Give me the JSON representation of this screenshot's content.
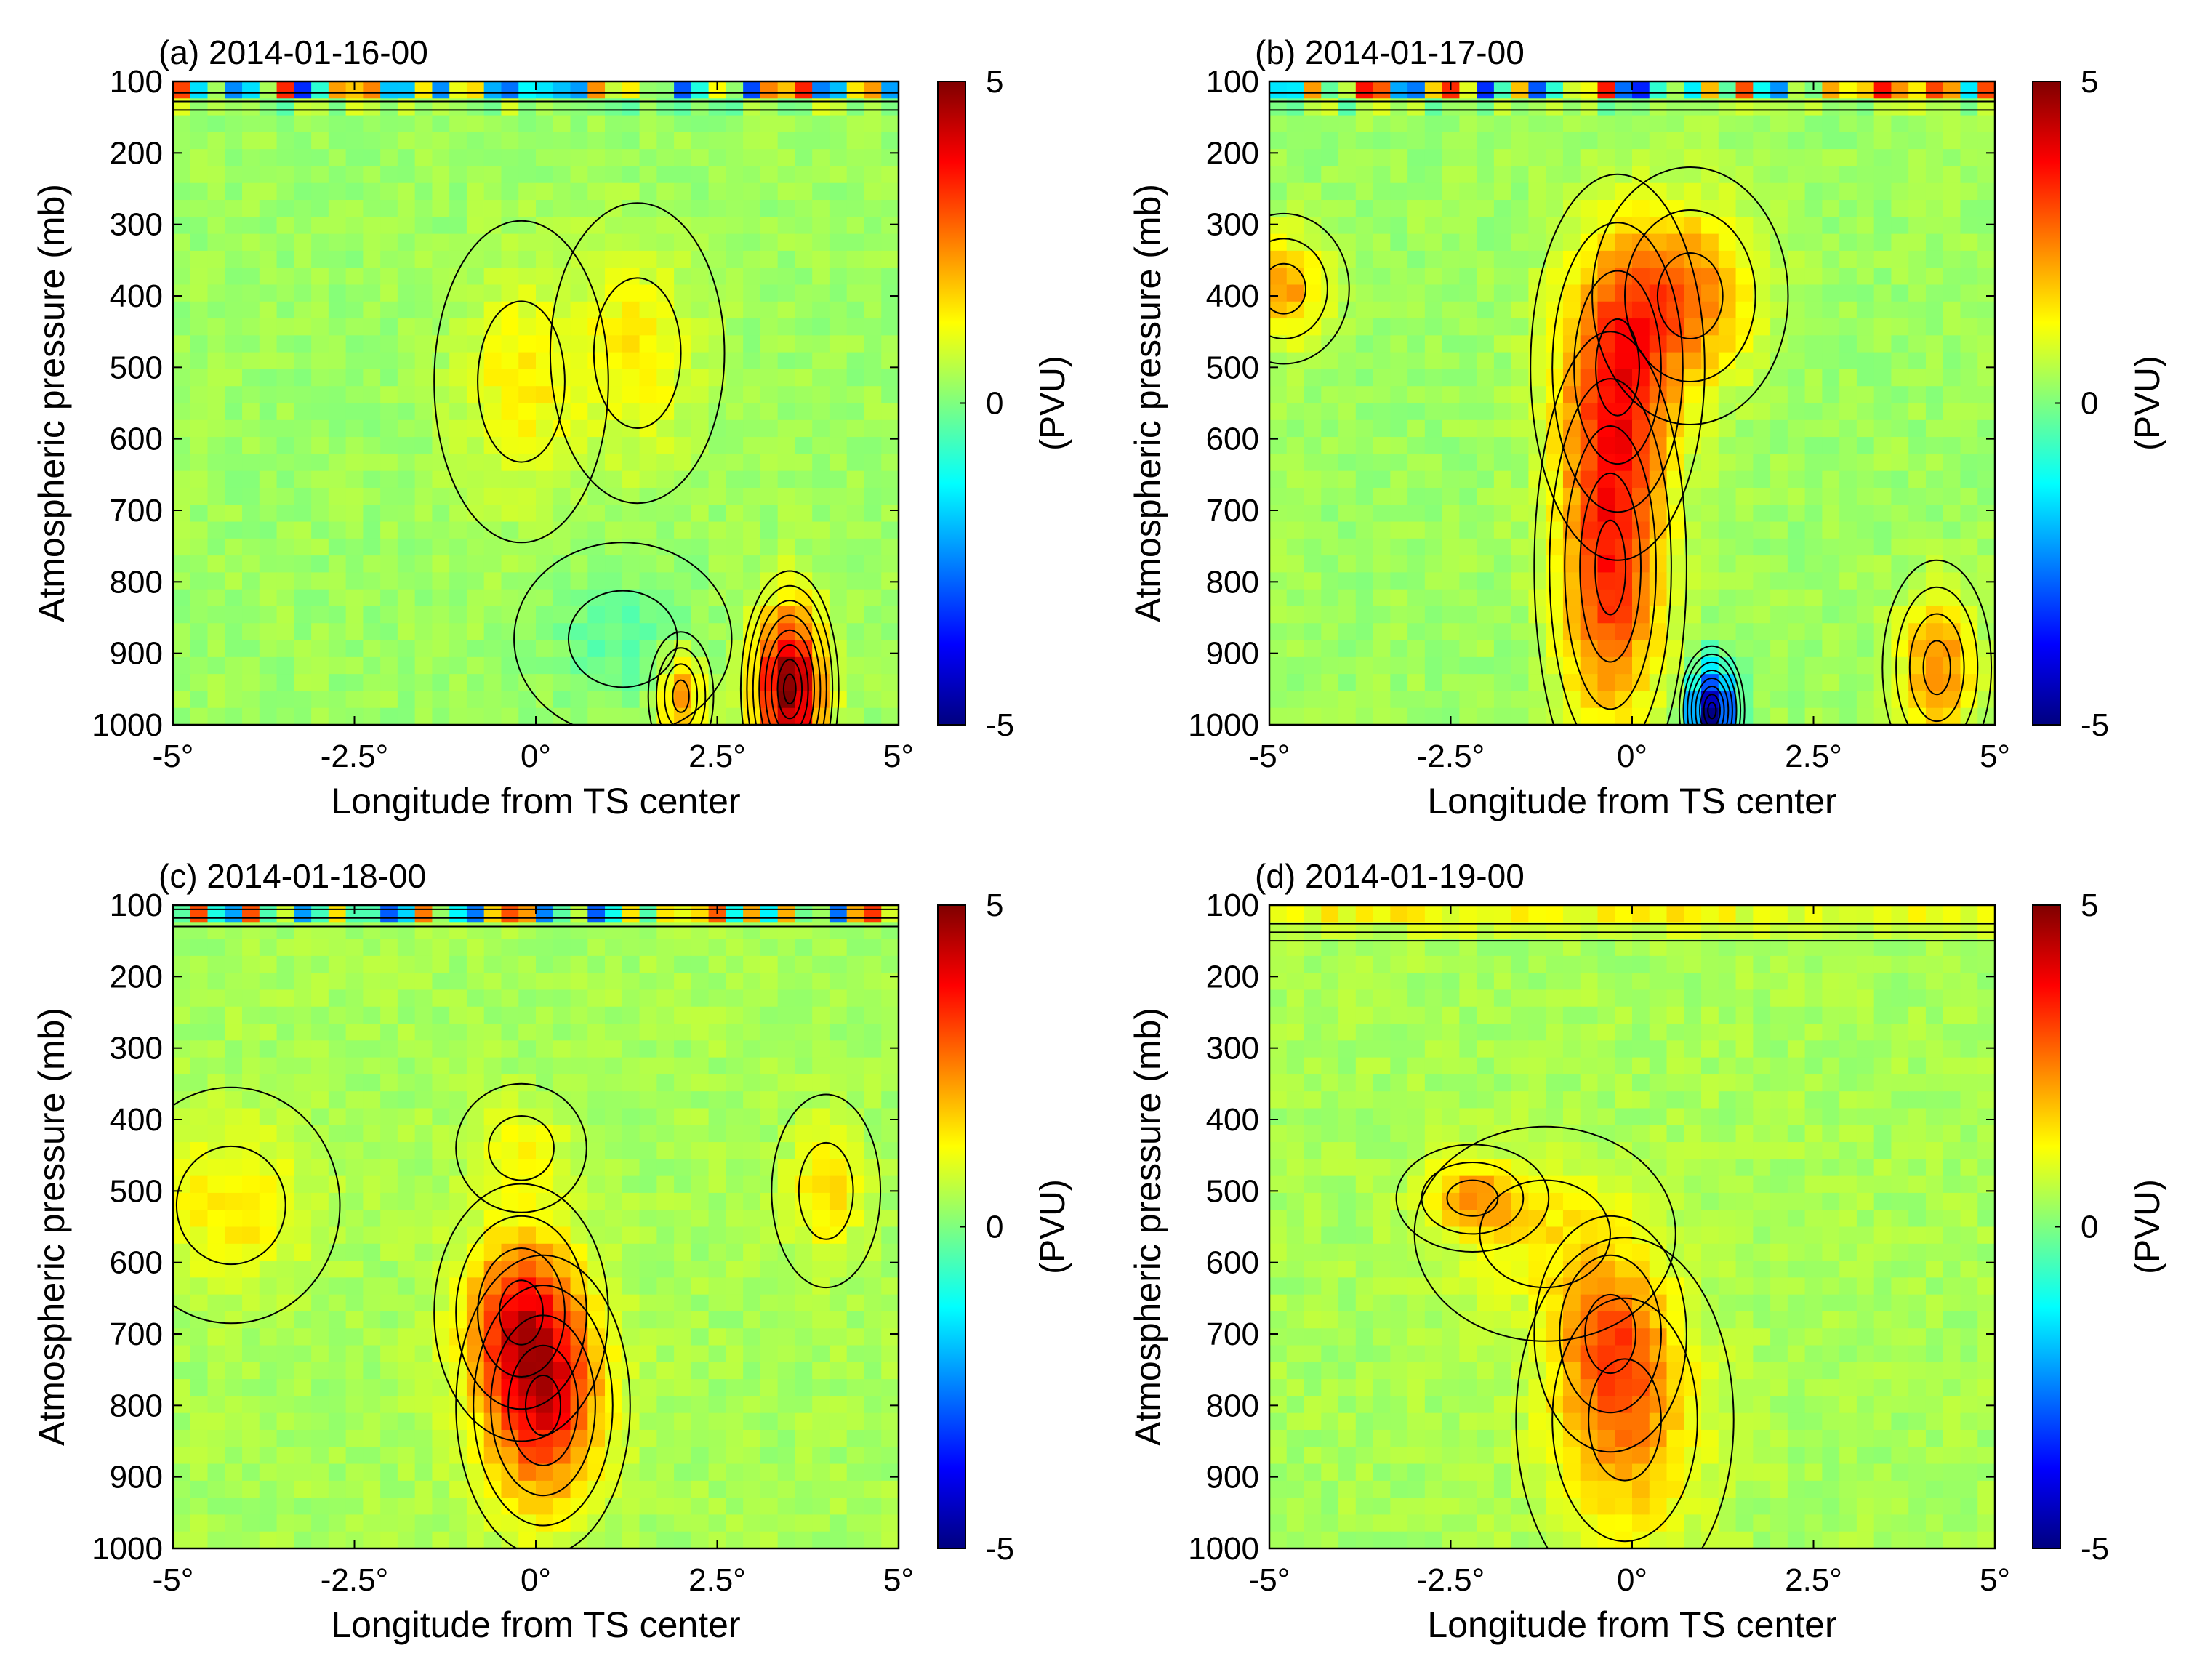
{
  "figure": {
    "colormap": "jet",
    "colormap_stops": [
      "#00007f",
      "#0000ff",
      "#007fff",
      "#00ffff",
      "#7fff7f",
      "#ffff00",
      "#ff7f00",
      "#ff0000",
      "#7f0000"
    ],
    "contour_line_color": "#000000"
  },
  "chart_data": [
    {
      "type": "heatmap",
      "panel": "(a)",
      "title": "2014-01-16-00",
      "xlabel": "Longitude from TS center",
      "ylabel": "Atmospheric pressure (mb)",
      "xlim": [
        -5,
        5
      ],
      "ylim": [
        1000,
        100
      ],
      "xticks": [
        "-5°",
        "-2.5°",
        "0°",
        "2.5°",
        "5°"
      ],
      "yticks": [
        "100",
        "200",
        "300",
        "400",
        "500",
        "600",
        "700",
        "800",
        "900",
        "1000"
      ],
      "colorbar": {
        "label": "(PVU)",
        "range": [
          -5,
          5
        ],
        "ticks": [
          "5",
          "0",
          "-5"
        ]
      },
      "background_value": 0.3,
      "features": [
        {
          "kind": "top-layer",
          "pressure_range": [
            100,
            140
          ],
          "max": 5,
          "min": -5
        },
        {
          "lon": -0.2,
          "p": 520,
          "value": 1.4,
          "lon_half_width": 0.8,
          "p_half_width": 150
        },
        {
          "lon": 1.4,
          "p": 480,
          "value": 1.4,
          "lon_half_width": 0.8,
          "p_half_width": 140
        },
        {
          "lon": 3.5,
          "p": 950,
          "value": 5,
          "lon_half_width": 0.45,
          "p_half_width": 110
        },
        {
          "lon": 2.0,
          "p": 960,
          "value": 2.5,
          "lon_half_width": 0.3,
          "p_half_width": 60
        },
        {
          "lon": 1.2,
          "p": 880,
          "value": -0.3,
          "lon_half_width": 1.0,
          "p_half_width": 90
        }
      ]
    },
    {
      "type": "heatmap",
      "panel": "(b)",
      "title": "2014-01-17-00",
      "xlabel": "Longitude from TS center",
      "ylabel": "Atmospheric pressure (mb)",
      "xlim": [
        -5,
        5
      ],
      "ylim": [
        1000,
        100
      ],
      "xticks": [
        "-5°",
        "-2.5°",
        "0°",
        "2.5°",
        "5°"
      ],
      "yticks": [
        "100",
        "200",
        "300",
        "400",
        "500",
        "600",
        "700",
        "800",
        "900",
        "1000"
      ],
      "colorbar": {
        "label": "(PVU)",
        "range": [
          -5,
          5
        ],
        "ticks": [
          "5",
          "0",
          "-5"
        ]
      },
      "background_value": 0.3,
      "features": [
        {
          "kind": "top-layer",
          "pressure_range": [
            100,
            140
          ],
          "max": 5,
          "min": -5
        },
        {
          "lon": -0.3,
          "p": 780,
          "value": 3.3,
          "lon_half_width": 0.7,
          "p_half_width": 220
        },
        {
          "lon": -0.2,
          "p": 500,
          "value": 3.0,
          "lon_half_width": 0.8,
          "p_half_width": 180
        },
        {
          "lon": 0.8,
          "p": 400,
          "value": 2.4,
          "lon_half_width": 0.9,
          "p_half_width": 120
        },
        {
          "lon": -4.8,
          "p": 390,
          "value": 2.2,
          "lon_half_width": 0.6,
          "p_half_width": 70
        },
        {
          "lon": 1.1,
          "p": 980,
          "value": -5,
          "lon_half_width": 0.3,
          "p_half_width": 60
        },
        {
          "lon": 4.2,
          "p": 920,
          "value": 2.5,
          "lon_half_width": 0.5,
          "p_half_width": 100
        }
      ]
    },
    {
      "type": "heatmap",
      "panel": "(c)",
      "title": "2014-01-18-00",
      "xlabel": "Longitude from TS center",
      "ylabel": "Atmospheric pressure (mb)",
      "xlim": [
        -5,
        5
      ],
      "ylim": [
        1000,
        100
      ],
      "xticks": [
        "-5°",
        "-2.5°",
        "0°",
        "2.5°",
        "5°"
      ],
      "yticks": [
        "100",
        "200",
        "300",
        "400",
        "500",
        "600",
        "700",
        "800",
        "900",
        "1000"
      ],
      "colorbar": {
        "label": "(PVU)",
        "range": [
          -5,
          5
        ],
        "ticks": [
          "5",
          "0",
          "-5"
        ]
      },
      "background_value": 0.4,
      "features": [
        {
          "kind": "top-layer",
          "pressure_range": [
            100,
            130
          ],
          "max": 5,
          "min": -5
        },
        {
          "lon": 0.1,
          "p": 800,
          "value": 3.6,
          "lon_half_width": 0.8,
          "p_half_width": 140
        },
        {
          "lon": -0.2,
          "p": 670,
          "value": 3.0,
          "lon_half_width": 0.8,
          "p_half_width": 120
        },
        {
          "lon": -4.2,
          "p": 520,
          "value": 1.5,
          "lon_half_width": 1.0,
          "p_half_width": 110
        },
        {
          "lon": 4.0,
          "p": 500,
          "value": 1.6,
          "lon_half_width": 0.5,
          "p_half_width": 90
        },
        {
          "lon": -0.2,
          "p": 440,
          "value": 1.3,
          "lon_half_width": 0.6,
          "p_half_width": 60
        }
      ]
    },
    {
      "type": "heatmap",
      "panel": "(d)",
      "title": "2014-01-19-00",
      "xlabel": "Longitude from TS center",
      "ylabel": "Atmospheric pressure (mb)",
      "xlim": [
        -5,
        5
      ],
      "ylim": [
        1000,
        100
      ],
      "xticks": [
        "-5°",
        "-2.5°",
        "0°",
        "2.5°",
        "5°"
      ],
      "yticks": [
        "100",
        "200",
        "300",
        "400",
        "500",
        "600",
        "700",
        "800",
        "900",
        "1000"
      ],
      "colorbar": {
        "label": "(PVU)",
        "range": [
          -5,
          5
        ],
        "ticks": [
          "5",
          "0",
          "-5"
        ]
      },
      "background_value": 0.4,
      "features": [
        {
          "kind": "top-layer",
          "pressure_range": [
            100,
            150
          ],
          "max": 2.0,
          "min": 0.8
        },
        {
          "lon": -0.1,
          "p": 820,
          "value": 2.3,
          "lon_half_width": 1.0,
          "p_half_width": 170
        },
        {
          "lon": -0.3,
          "p": 700,
          "value": 2.0,
          "lon_half_width": 0.7,
          "p_half_width": 110
        },
        {
          "lon": -2.2,
          "p": 510,
          "value": 2.1,
          "lon_half_width": 0.7,
          "p_half_width": 50
        },
        {
          "lon": -1.2,
          "p": 560,
          "value": 1.3,
          "lon_half_width": 1.2,
          "p_half_width": 100
        }
      ]
    }
  ]
}
